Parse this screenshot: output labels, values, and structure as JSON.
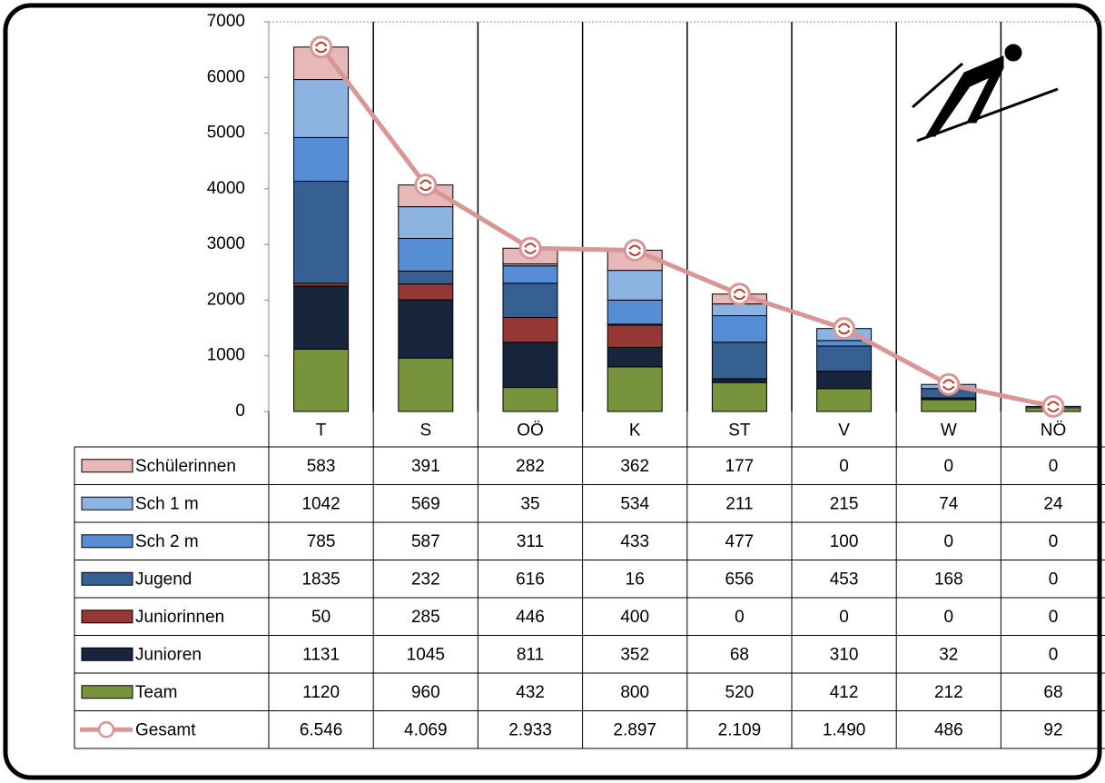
{
  "chart_data": {
    "type": "bar",
    "stacked": true,
    "categories": [
      "T",
      "S",
      "OÖ",
      "K",
      "ST",
      "V",
      "W",
      "NÖ"
    ],
    "ylim": [
      0,
      7000
    ],
    "yticks": [
      0,
      1000,
      2000,
      3000,
      4000,
      5000,
      6000,
      7000
    ],
    "grid": false,
    "series": [
      {
        "name": "Team",
        "color": "#77933c",
        "values": [
          1120,
          960,
          432,
          800,
          520,
          412,
          212,
          68
        ]
      },
      {
        "name": "Junioren",
        "color": "#17253d",
        "values": [
          1131,
          1045,
          811,
          352,
          68,
          310,
          32,
          0
        ]
      },
      {
        "name": "Juniorinnen",
        "color": "#953735",
        "values": [
          50,
          285,
          446,
          400,
          0,
          0,
          0,
          0
        ]
      },
      {
        "name": "Jugend",
        "color": "#376092",
        "values": [
          1835,
          232,
          616,
          16,
          656,
          453,
          168,
          0
        ]
      },
      {
        "name": "Sch 2 m",
        "color": "#558ed5",
        "values": [
          785,
          587,
          311,
          433,
          477,
          100,
          0,
          0
        ]
      },
      {
        "name": "Sch 1 m",
        "color": "#8db3e2",
        "values": [
          1042,
          569,
          35,
          534,
          211,
          215,
          74,
          24
        ]
      },
      {
        "name": "Schülerinnen",
        "color": "#e6b9b8",
        "values": [
          583,
          391,
          282,
          362,
          177,
          0,
          0,
          0
        ]
      },
      {
        "name": "Gesamt",
        "type": "line",
        "color": "#d99694",
        "values": [
          6546,
          4069,
          2933,
          2897,
          2109,
          1490,
          486,
          92
        ],
        "value_labels": [
          "6.546",
          "4.069",
          "2.933",
          "2.897",
          "2.109",
          "1.490",
          "486",
          "92"
        ]
      }
    ]
  }
}
